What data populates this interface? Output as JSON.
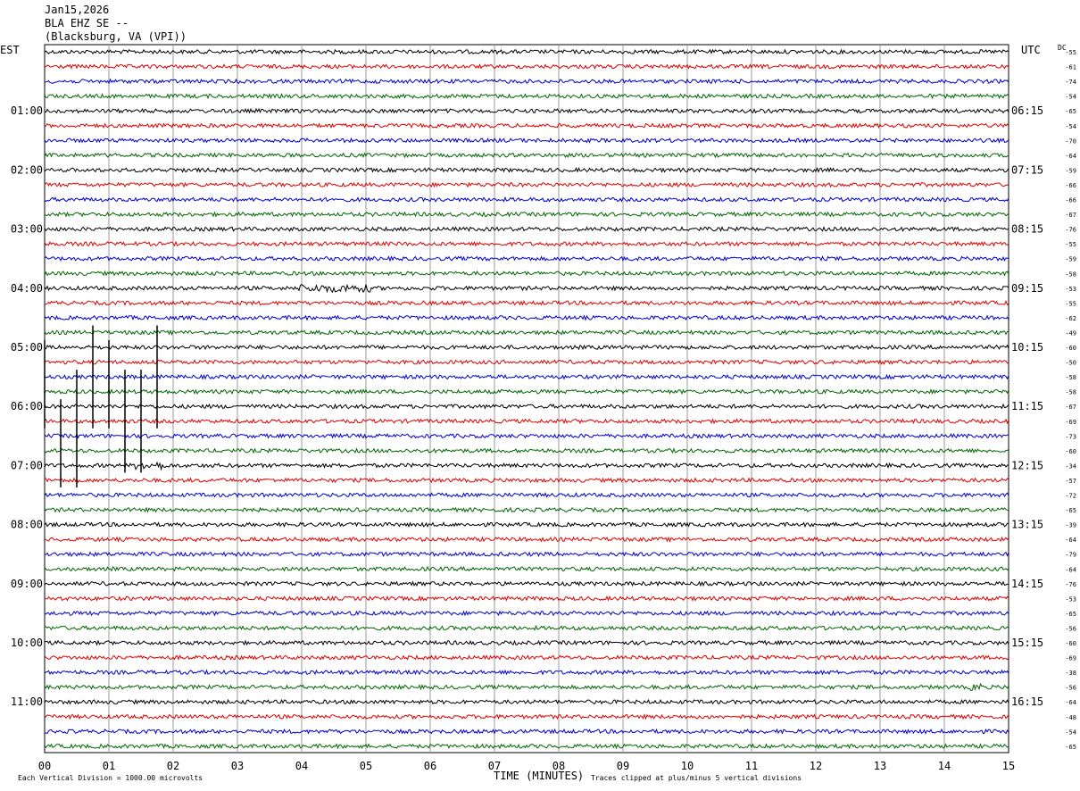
{
  "header": {
    "date": "Jan15,2026",
    "station": "BLA EHZ SE --",
    "location": "(Blacksburg, VA (VPI))"
  },
  "left_tz_label": "EST",
  "right_tz_label": "UTC",
  "dc_label": "DC",
  "footer": {
    "scale_note": "Each Vertical Division = 1000.00 microvolts",
    "x_axis_title": "TIME (MINUTES)",
    "clip_note": "Traces clipped at plus/minus 5 vertical divisions"
  },
  "colors": {
    "trace_cycle": [
      "#000000",
      "#dd0000",
      "#0000cc",
      "#006600"
    ],
    "grid": "#999999"
  },
  "chart_data": {
    "type": "line",
    "title": "BLA EHZ SE -- (Blacksburg, VA (VPI))",
    "xlabel": "TIME (MINUTES)",
    "xlim": [
      0,
      15
    ],
    "x_ticks": [
      "00",
      "01",
      "02",
      "03",
      "04",
      "05",
      "06",
      "07",
      "08",
      "09",
      "10",
      "11",
      "12",
      "13",
      "14",
      "15"
    ],
    "trace_minutes": 15,
    "trace_count": 48,
    "left_hour_labels": [
      "01:00",
      "02:00",
      "03:00",
      "04:00",
      "05:00",
      "06:00",
      "07:00",
      "08:00",
      "09:00",
      "10:00",
      "11:00"
    ],
    "right_hour_labels": [
      "06:15",
      "07:15",
      "08:15",
      "09:15",
      "10:15",
      "11:15",
      "12:15",
      "13:15",
      "14:15",
      "15:15",
      "16:15"
    ],
    "dc_offsets": [
      -55,
      -61,
      -74,
      -54,
      -65,
      -54,
      -70,
      -64,
      -59,
      -66,
      -66,
      -67,
      -76,
      -55,
      -59,
      -58,
      -53,
      -55,
      -62,
      -49,
      -60,
      -50,
      -58,
      -58,
      -67,
      -69,
      -73,
      -60,
      -34,
      -57,
      -72,
      -65,
      -39,
      -64,
      -79,
      -64,
      -76,
      -53,
      -65,
      -56,
      -60,
      -69,
      -38,
      -56,
      -64,
      -48,
      -54,
      -65
    ],
    "events": [
      {
        "trace": 16,
        "start_min": 3.9,
        "end_min": 5.1,
        "note": "elevated amplitude"
      },
      {
        "trace": 28,
        "start_min": 1.4,
        "end_min": 1.9,
        "note": "elevated amplitude"
      },
      {
        "trace": 43,
        "start_min": 14.4,
        "end_min": 14.6,
        "note": "elevated amplitude"
      }
    ],
    "clipped_spikes": [
      {
        "minute": 0.0,
        "trace_from": 20,
        "trace_to": 25
      },
      {
        "minute": 0.25,
        "trace_from": 24,
        "trace_to": 29
      },
      {
        "minute": 0.5,
        "trace_from": 22,
        "trace_to": 29
      },
      {
        "minute": 0.75,
        "trace_from": 19,
        "trace_to": 25
      },
      {
        "minute": 1.0,
        "trace_from": 20,
        "trace_to": 25
      },
      {
        "minute": 1.25,
        "trace_from": 22,
        "trace_to": 28
      },
      {
        "minute": 1.5,
        "trace_from": 22,
        "trace_to": 28
      },
      {
        "minute": 1.75,
        "trace_from": 19,
        "trace_to": 25
      }
    ]
  }
}
